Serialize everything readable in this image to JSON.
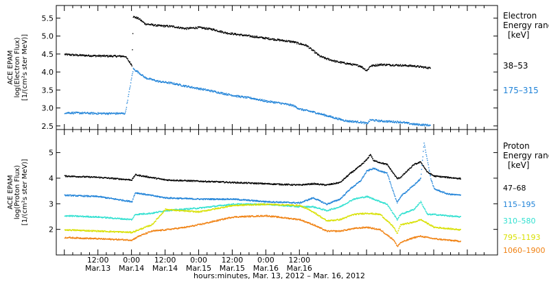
{
  "chart_data": [
    {
      "type": "scatter",
      "ylabel_lines": [
        "ACE EPAM",
        "log(Electron Flux)",
        "[1/(cm²s ster MeV)]"
      ],
      "legend_title": [
        "Electron",
        "Energy range",
        "[keV]"
      ],
      "ylim": [
        2.4,
        5.85
      ],
      "yticks": [
        2.5,
        3.0,
        3.5,
        4.0,
        4.5,
        5.0,
        5.5
      ],
      "ytick_labels": [
        "2.5",
        "3.0",
        "3.5",
        "4.0",
        "4.5",
        "5.0",
        "5.5"
      ],
      "series": [
        {
          "name": "38–53",
          "color": "#000000",
          "points": [
            [
              -0.5,
              4.5
            ],
            [
              -0.3,
              4.48
            ],
            [
              0.0,
              4.46
            ],
            [
              0.4,
              4.45
            ],
            [
              0.5,
              4.2
            ],
            [
              0.52,
              5.55
            ],
            [
              0.6,
              5.5
            ],
            [
              0.7,
              5.35
            ],
            [
              0.9,
              5.3
            ],
            [
              1.1,
              5.28
            ],
            [
              1.3,
              5.22
            ],
            [
              1.5,
              5.25
            ],
            [
              1.7,
              5.2
            ],
            [
              1.9,
              5.1
            ],
            [
              2.1,
              5.05
            ],
            [
              2.3,
              5.0
            ],
            [
              2.5,
              4.95
            ],
            [
              2.7,
              4.9
            ],
            [
              2.9,
              4.85
            ],
            [
              3.0,
              4.8
            ],
            [
              3.1,
              4.75
            ],
            [
              3.2,
              4.6
            ],
            [
              3.3,
              4.45
            ],
            [
              3.4,
              4.38
            ],
            [
              3.55,
              4.3
            ],
            [
              3.7,
              4.25
            ],
            [
              3.9,
              4.18
            ],
            [
              4.0,
              4.05
            ],
            [
              4.05,
              4.18
            ],
            [
              4.2,
              4.22
            ],
            [
              4.5,
              4.2
            ],
            [
              4.7,
              4.18
            ],
            [
              4.95,
              4.12
            ]
          ]
        },
        {
          "name": "175–315",
          "color": "#1e82d8",
          "points": [
            [
              -0.5,
              2.88
            ],
            [
              -0.2,
              2.87
            ],
            [
              0.0,
              2.86
            ],
            [
              0.4,
              2.86
            ],
            [
              0.52,
              4.1
            ],
            [
              0.6,
              4.0
            ],
            [
              0.7,
              3.85
            ],
            [
              0.9,
              3.75
            ],
            [
              1.1,
              3.7
            ],
            [
              1.3,
              3.62
            ],
            [
              1.5,
              3.55
            ],
            [
              1.7,
              3.48
            ],
            [
              1.9,
              3.4
            ],
            [
              2.1,
              3.33
            ],
            [
              2.3,
              3.28
            ],
            [
              2.5,
              3.2
            ],
            [
              2.7,
              3.15
            ],
            [
              2.9,
              3.08
            ],
            [
              3.0,
              2.98
            ],
            [
              3.2,
              2.9
            ],
            [
              3.4,
              2.8
            ],
            [
              3.55,
              2.72
            ],
            [
              3.7,
              2.65
            ],
            [
              3.9,
              2.62
            ],
            [
              4.0,
              2.58
            ],
            [
              4.05,
              2.68
            ],
            [
              4.2,
              2.65
            ],
            [
              4.5,
              2.62
            ],
            [
              4.7,
              2.56
            ],
            [
              4.95,
              2.53
            ]
          ]
        }
      ]
    },
    {
      "type": "scatter",
      "ylabel_lines": [
        "ACE EPAM",
        "log(Proton Flux)",
        "[1/(cm²s ster MeV)]"
      ],
      "legend_title": [
        "Proton",
        "Energy range",
        "[keV]"
      ],
      "ylim": [
        1.0,
        5.9
      ],
      "yticks": [
        2,
        3,
        4,
        5
      ],
      "ytick_labels": [
        "2",
        "3",
        "4",
        "5"
      ],
      "series": [
        {
          "name": "47–68",
          "color": "#000000",
          "points": [
            [
              -0.5,
              4.1
            ],
            [
              0.0,
              4.05
            ],
            [
              0.5,
              3.95
            ],
            [
              0.55,
              4.15
            ],
            [
              1.0,
              3.95
            ],
            [
              1.5,
              3.9
            ],
            [
              2.0,
              3.85
            ],
            [
              2.5,
              3.8
            ],
            [
              3.0,
              3.75
            ],
            [
              3.2,
              3.8
            ],
            [
              3.4,
              3.75
            ],
            [
              3.6,
              3.85
            ],
            [
              3.75,
              4.2
            ],
            [
              3.9,
              4.5
            ],
            [
              4.0,
              4.75
            ],
            [
              4.05,
              4.95
            ],
            [
              4.1,
              4.7
            ],
            [
              4.3,
              4.55
            ],
            [
              4.45,
              4.0
            ],
            [
              4.5,
              4.05
            ],
            [
              4.7,
              4.55
            ],
            [
              4.8,
              4.65
            ],
            [
              4.9,
              4.25
            ],
            [
              5.0,
              4.1
            ],
            [
              5.2,
              4.05
            ],
            [
              5.4,
              4.0
            ]
          ]
        },
        {
          "name": "115–195",
          "color": "#1e82d8",
          "points": [
            [
              -0.5,
              3.35
            ],
            [
              0.0,
              3.3
            ],
            [
              0.5,
              3.1
            ],
            [
              0.55,
              3.45
            ],
            [
              1.0,
              3.25
            ],
            [
              1.5,
              3.2
            ],
            [
              2.0,
              3.2
            ],
            [
              2.5,
              3.1
            ],
            [
              3.0,
              3.05
            ],
            [
              3.2,
              3.25
            ],
            [
              3.4,
              3.0
            ],
            [
              3.6,
              3.2
            ],
            [
              3.75,
              3.6
            ],
            [
              3.9,
              3.9
            ],
            [
              4.0,
              4.3
            ],
            [
              4.1,
              4.4
            ],
            [
              4.3,
              4.2
            ],
            [
              4.45,
              3.05
            ],
            [
              4.5,
              3.3
            ],
            [
              4.7,
              3.75
            ],
            [
              4.8,
              4.0
            ],
            [
              4.85,
              5.4
            ],
            [
              4.95,
              4.0
            ],
            [
              5.0,
              3.6
            ],
            [
              5.2,
              3.4
            ],
            [
              5.4,
              3.35
            ]
          ]
        },
        {
          "name": "310–580",
          "color": "#30e0d0",
          "points": [
            [
              -0.5,
              2.55
            ],
            [
              0.0,
              2.5
            ],
            [
              0.5,
              2.4
            ],
            [
              0.55,
              2.6
            ],
            [
              0.8,
              2.65
            ],
            [
              1.0,
              2.75
            ],
            [
              1.5,
              2.85
            ],
            [
              2.0,
              3.0
            ],
            [
              2.5,
              3.0
            ],
            [
              3.0,
              2.9
            ],
            [
              3.2,
              2.9
            ],
            [
              3.4,
              2.75
            ],
            [
              3.6,
              2.9
            ],
            [
              3.8,
              3.2
            ],
            [
              4.0,
              3.3
            ],
            [
              4.1,
              3.2
            ],
            [
              4.3,
              3.0
            ],
            [
              4.45,
              2.4
            ],
            [
              4.5,
              2.6
            ],
            [
              4.7,
              2.8
            ],
            [
              4.8,
              3.1
            ],
            [
              4.9,
              2.6
            ],
            [
              5.0,
              2.6
            ],
            [
              5.2,
              2.55
            ],
            [
              5.4,
              2.5
            ]
          ]
        },
        {
          "name": "795–1193",
          "color": "#d8e000",
          "points": [
            [
              -0.5,
              2.0
            ],
            [
              0.0,
              1.95
            ],
            [
              0.5,
              1.9
            ],
            [
              0.6,
              2.0
            ],
            [
              0.8,
              2.2
            ],
            [
              0.9,
              2.5
            ],
            [
              1.0,
              2.8
            ],
            [
              1.2,
              2.75
            ],
            [
              1.5,
              2.7
            ],
            [
              2.0,
              2.95
            ],
            [
              2.5,
              3.0
            ],
            [
              3.0,
              2.95
            ],
            [
              3.2,
              2.7
            ],
            [
              3.4,
              2.35
            ],
            [
              3.6,
              2.4
            ],
            [
              3.8,
              2.6
            ],
            [
              4.0,
              2.65
            ],
            [
              4.2,
              2.6
            ],
            [
              4.4,
              2.1
            ],
            [
              4.45,
              1.85
            ],
            [
              4.5,
              2.2
            ],
            [
              4.7,
              2.3
            ],
            [
              4.8,
              2.4
            ],
            [
              5.0,
              2.1
            ],
            [
              5.2,
              2.05
            ],
            [
              5.4,
              2.0
            ]
          ]
        },
        {
          "name": "1060–1900",
          "color": "#f08010",
          "points": [
            [
              -0.5,
              1.7
            ],
            [
              0.0,
              1.65
            ],
            [
              0.5,
              1.6
            ],
            [
              0.6,
              1.75
            ],
            [
              0.8,
              1.95
            ],
            [
              1.0,
              2.0
            ],
            [
              1.3,
              2.1
            ],
            [
              1.5,
              2.2
            ],
            [
              2.0,
              2.5
            ],
            [
              2.5,
              2.55
            ],
            [
              3.0,
              2.4
            ],
            [
              3.2,
              2.2
            ],
            [
              3.4,
              1.95
            ],
            [
              3.6,
              1.95
            ],
            [
              3.8,
              2.05
            ],
            [
              4.0,
              2.1
            ],
            [
              4.2,
              2.0
            ],
            [
              4.4,
              1.6
            ],
            [
              4.45,
              1.35
            ],
            [
              4.5,
              1.5
            ],
            [
              4.7,
              1.7
            ],
            [
              4.8,
              1.75
            ],
            [
              5.0,
              1.65
            ],
            [
              5.2,
              1.6
            ],
            [
              5.4,
              1.55
            ]
          ]
        }
      ]
    }
  ],
  "x_axis": {
    "unit_note": "days since Mar.13 12:00",
    "xlim": [
      -0.62,
      5.95
    ],
    "ticks": [
      {
        "x": 0.0,
        "time": "12:00",
        "date": "Mar.13"
      },
      {
        "x": 0.5,
        "time": "0:00",
        "date": "Mar.14"
      },
      {
        "x": 1.0,
        "time": "12:00",
        "date": "Mar.14"
      },
      {
        "x": 1.5,
        "time": "0:00",
        "date": "Mar.15"
      },
      {
        "x": 2.0,
        "time": "12:00",
        "date": "Mar.15"
      },
      {
        "x": 2.5,
        "time": "0:00",
        "date": "Mar.16"
      },
      {
        "x": 3.0,
        "time": "12:00",
        "date": "Mar.16"
      }
    ],
    "label": "hours:minutes, Mar. 13, 2012 – Mar. 16, 2012"
  },
  "colors": {
    "frame": "#000000",
    "background": "#ffffff"
  }
}
